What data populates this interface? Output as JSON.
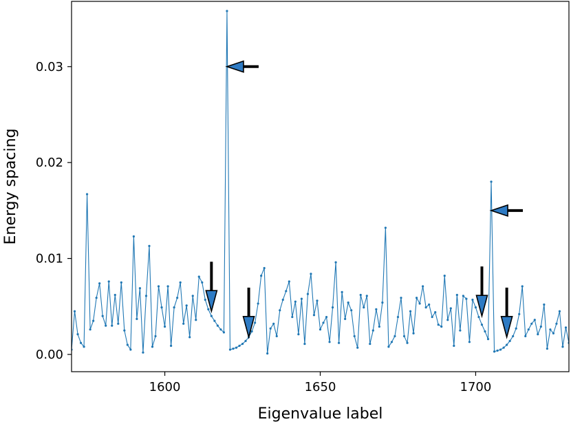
{
  "chart_data": {
    "type": "line",
    "title": "",
    "xlabel": "Eigenvalue label",
    "ylabel": "Energy spacing",
    "xlim": [
      1570,
      1730
    ],
    "ylim": [
      -0.0018,
      0.0368
    ],
    "xticks": [
      1600,
      1650,
      1700
    ],
    "xtick_labels": [
      "1600",
      "1650",
      "1700"
    ],
    "yticks": [
      0.0,
      0.01,
      0.02,
      0.03
    ],
    "ytick_labels": [
      "0.00",
      "0.01",
      "0.02",
      "0.03"
    ],
    "grid": false,
    "line_color": "#1f77b4",
    "arrow_fill": "#2e7bc4",
    "series": [
      {
        "x": [
          1570,
          1571,
          1572,
          1573,
          1574,
          1575,
          1576,
          1577,
          1578,
          1579,
          1580,
          1581,
          1582,
          1583,
          1584,
          1585,
          1586,
          1587,
          1588,
          1589,
          1590,
          1591,
          1592,
          1593,
          1594,
          1595,
          1596,
          1597,
          1598,
          1599,
          1600,
          1601,
          1602,
          1603,
          1604,
          1605,
          1606,
          1607,
          1608,
          1609,
          1610,
          1611,
          1612,
          1613,
          1614,
          1615,
          1616,
          1617,
          1618,
          1619,
          1620,
          1621,
          1622,
          1623,
          1624,
          1625,
          1626,
          1627,
          1628,
          1629,
          1630,
          1631,
          1632,
          1633,
          1634,
          1635,
          1636,
          1637,
          1638,
          1639,
          1640,
          1641,
          1642,
          1643,
          1644,
          1645,
          1646,
          1647,
          1648,
          1649,
          1650,
          1651,
          1652,
          1653,
          1654,
          1655,
          1656,
          1657,
          1658,
          1659,
          1660,
          1661,
          1662,
          1663,
          1664,
          1665,
          1666,
          1667,
          1668,
          1669,
          1670,
          1671,
          1672,
          1673,
          1674,
          1675,
          1676,
          1677,
          1678,
          1679,
          1680,
          1681,
          1682,
          1683,
          1684,
          1685,
          1686,
          1687,
          1688,
          1689,
          1690,
          1691,
          1692,
          1693,
          1694,
          1695,
          1696,
          1697,
          1698,
          1699,
          1700,
          1701,
          1702,
          1703,
          1704,
          1705,
          1706,
          1707,
          1708,
          1709,
          1710,
          1711,
          1712,
          1713,
          1714,
          1715,
          1716,
          1717,
          1718,
          1719,
          1720,
          1721,
          1722,
          1723,
          1724,
          1725,
          1726,
          1727,
          1728,
          1729,
          1730
        ],
        "y": [
          0.0005,
          0.0045,
          0.0021,
          0.0012,
          0.0008,
          0.0167,
          0.0026,
          0.0035,
          0.0059,
          0.0074,
          0.004,
          0.003,
          0.0076,
          0.003,
          0.0062,
          0.0032,
          0.0075,
          0.0025,
          0.001,
          0.0005,
          0.0123,
          0.0037,
          0.0069,
          0.0002,
          0.0061,
          0.0113,
          0.0008,
          0.0019,
          0.0071,
          0.0049,
          0.0029,
          0.0071,
          0.0009,
          0.0049,
          0.0059,
          0.0075,
          0.0032,
          0.0051,
          0.0018,
          0.0061,
          0.0036,
          0.0081,
          0.0075,
          0.0057,
          0.0047,
          0.004,
          0.0035,
          0.003,
          0.0026,
          0.0023,
          0.0358,
          0.0005,
          0.0006,
          0.0007,
          0.0009,
          0.0011,
          0.0014,
          0.0018,
          0.0024,
          0.0033,
          0.0053,
          0.0082,
          0.009,
          0.0001,
          0.0027,
          0.0032,
          0.0019,
          0.0046,
          0.0057,
          0.0066,
          0.0076,
          0.0039,
          0.0055,
          0.0021,
          0.0058,
          0.0011,
          0.0063,
          0.0084,
          0.0041,
          0.0056,
          0.0026,
          0.0033,
          0.0039,
          0.0013,
          0.0049,
          0.0096,
          0.0012,
          0.0065,
          0.0037,
          0.0054,
          0.0046,
          0.0019,
          0.0007,
          0.0062,
          0.0049,
          0.0061,
          0.0011,
          0.0025,
          0.0047,
          0.0029,
          0.0054,
          0.0132,
          0.0008,
          0.0013,
          0.0019,
          0.0039,
          0.0059,
          0.0019,
          0.0012,
          0.0045,
          0.0022,
          0.0059,
          0.0053,
          0.0071,
          0.0049,
          0.0052,
          0.0039,
          0.0044,
          0.0031,
          0.0029,
          0.0082,
          0.0036,
          0.0048,
          0.0009,
          0.0062,
          0.0025,
          0.0061,
          0.0058,
          0.0013,
          0.0057,
          0.0049,
          0.0039,
          0.0031,
          0.0024,
          0.0016,
          0.018,
          0.0003,
          0.0004,
          0.0005,
          0.0007,
          0.001,
          0.0014,
          0.0019,
          0.0027,
          0.0042,
          0.0071,
          0.0019,
          0.0026,
          0.0032,
          0.0036,
          0.0021,
          0.0029,
          0.0052,
          0.0006,
          0.0026,
          0.0022,
          0.0032,
          0.0045,
          0.0008,
          0.0028,
          0.0012
        ]
      }
    ],
    "annotations": [
      {
        "type": "arrow",
        "direction": "left",
        "target_x": 1620,
        "target_y": 0.03
      },
      {
        "type": "arrow",
        "direction": "down",
        "target_x": 1615,
        "target_y": 0.0045
      },
      {
        "type": "arrow",
        "direction": "down",
        "target_x": 1627,
        "target_y": 0.0018
      },
      {
        "type": "arrow",
        "direction": "left",
        "target_x": 1705,
        "target_y": 0.015
      },
      {
        "type": "arrow",
        "direction": "down",
        "target_x": 1702,
        "target_y": 0.004
      },
      {
        "type": "arrow",
        "direction": "down",
        "target_x": 1710,
        "target_y": 0.0018
      }
    ]
  }
}
